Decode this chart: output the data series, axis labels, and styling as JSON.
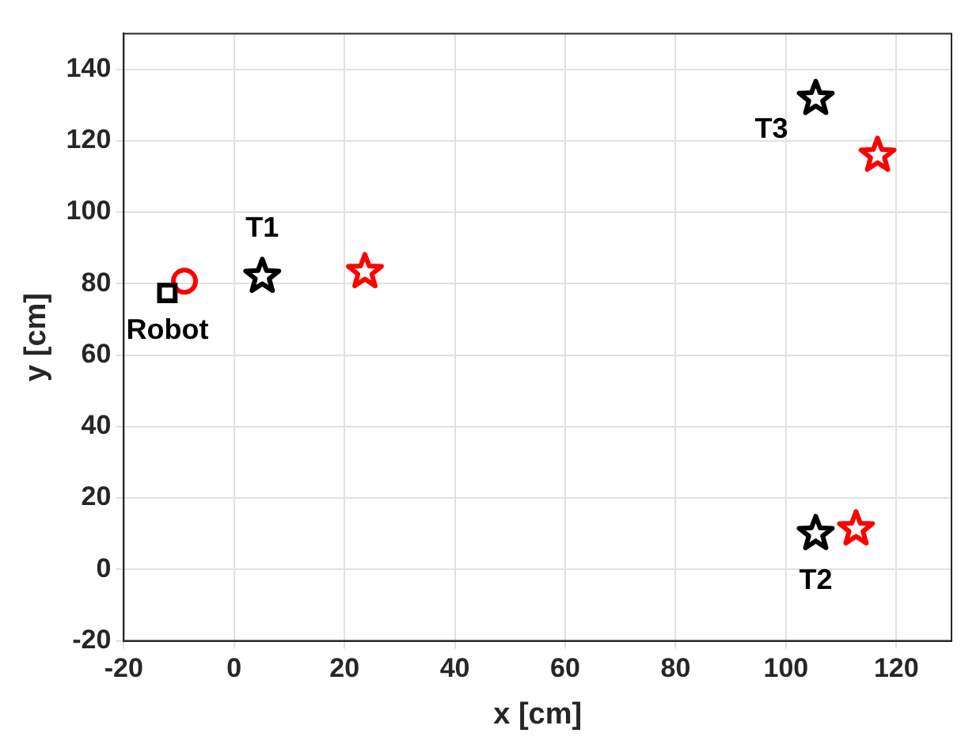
{
  "chart_data": {
    "type": "scatter",
    "xlabel": "x [cm]",
    "ylabel": "y [cm]",
    "xlim": [
      -20,
      130
    ],
    "xticks": [
      -20,
      0,
      20,
      40,
      60,
      80,
      100,
      120
    ],
    "ylim": [
      -20,
      150
    ],
    "yticks": [
      -20,
      0,
      20,
      40,
      60,
      80,
      100,
      120,
      140
    ],
    "grid": true,
    "series": [
      {
        "color": "#000000",
        "marker": "square",
        "x": [
          -12.1
        ],
        "values": [
          77.4
        ]
      },
      {
        "color": "#ff0000",
        "marker": "circle",
        "x": [
          -9
        ],
        "values": [
          80.7
        ]
      },
      {
        "color": "#000000",
        "marker": "star",
        "x": [
          5.1,
          105.4,
          105.4
        ],
        "values": [
          82,
          10,
          131.8
        ]
      },
      {
        "color": "#ff0000",
        "marker": "star",
        "x": [
          23.7,
          112.7,
          116.6
        ],
        "values": [
          83.3,
          11.3,
          115.9
        ]
      }
    ],
    "annotations": [
      {
        "text": "Robot",
        "x": -12.1,
        "y": 77.4
      },
      {
        "text": "T1",
        "x": 5.1,
        "y": 82
      },
      {
        "text": "T2",
        "x": 105.4,
        "y": 10
      },
      {
        "text": "T3",
        "x": 105.4,
        "y": 131.8
      }
    ]
  }
}
